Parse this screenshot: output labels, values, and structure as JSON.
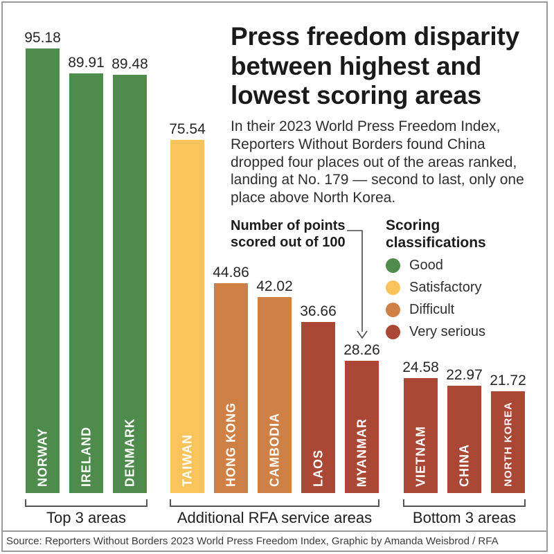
{
  "header": {
    "title": "Press freedom disparity between highest and lowest scoring areas",
    "description": "In their 2023 World Press Freedom Index, Reporters Without Borders found China dropped four places out of the areas ranked, landing at No. 179 — second to last, only one place above North Korea."
  },
  "annotation": {
    "label": "Number of points scored out of 100"
  },
  "legend": {
    "title": "Scoring classifications",
    "items": [
      {
        "label": "Good",
        "color": "#4e8b4c"
      },
      {
        "label": "Satisfactory",
        "color": "#f9c45c"
      },
      {
        "label": "Difficult",
        "color": "#cf8045"
      },
      {
        "label": "Very serious",
        "color": "#aa4835"
      }
    ]
  },
  "chart_data": {
    "type": "bar",
    "title": "Press freedom disparity between highest and lowest scoring areas",
    "ylabel": "Number of points scored out of 100",
    "ylim": [
      0,
      100
    ],
    "legend_position": "right",
    "grid": false,
    "groups": [
      {
        "label": "Top 3 areas",
        "bars": [
          {
            "name": "NORWAY",
            "value": 95.18,
            "classification": "Good"
          },
          {
            "name": "IRELAND",
            "value": 89.91,
            "classification": "Good"
          },
          {
            "name": "DENMARK",
            "value": 89.48,
            "classification": "Good"
          }
        ]
      },
      {
        "label": "Additional RFA service areas",
        "bars": [
          {
            "name": "TAIWAN",
            "value": 75.54,
            "classification": "Satisfactory"
          },
          {
            "name": "HONG KONG",
            "value": 44.86,
            "classification": "Difficult"
          },
          {
            "name": "CAMBODIA",
            "value": 42.02,
            "classification": "Difficult"
          },
          {
            "name": "LAOS",
            "value": 36.66,
            "classification": "Very serious"
          },
          {
            "name": "MYANMAR",
            "value": 28.26,
            "classification": "Very serious"
          }
        ]
      },
      {
        "label": "Bottom 3 areas",
        "bars": [
          {
            "name": "VIETNAM",
            "value": 24.58,
            "classification": "Very serious"
          },
          {
            "name": "CHINA",
            "value": 22.97,
            "classification": "Very serious"
          },
          {
            "name": "NORTH KOREA",
            "value": 21.72,
            "classification": "Very serious"
          }
        ]
      }
    ]
  },
  "footer": {
    "source": "Source: Reporters Without Borders 2023 World Press Freedom Index, Graphic by Amanda Weisbrod / RFA"
  }
}
